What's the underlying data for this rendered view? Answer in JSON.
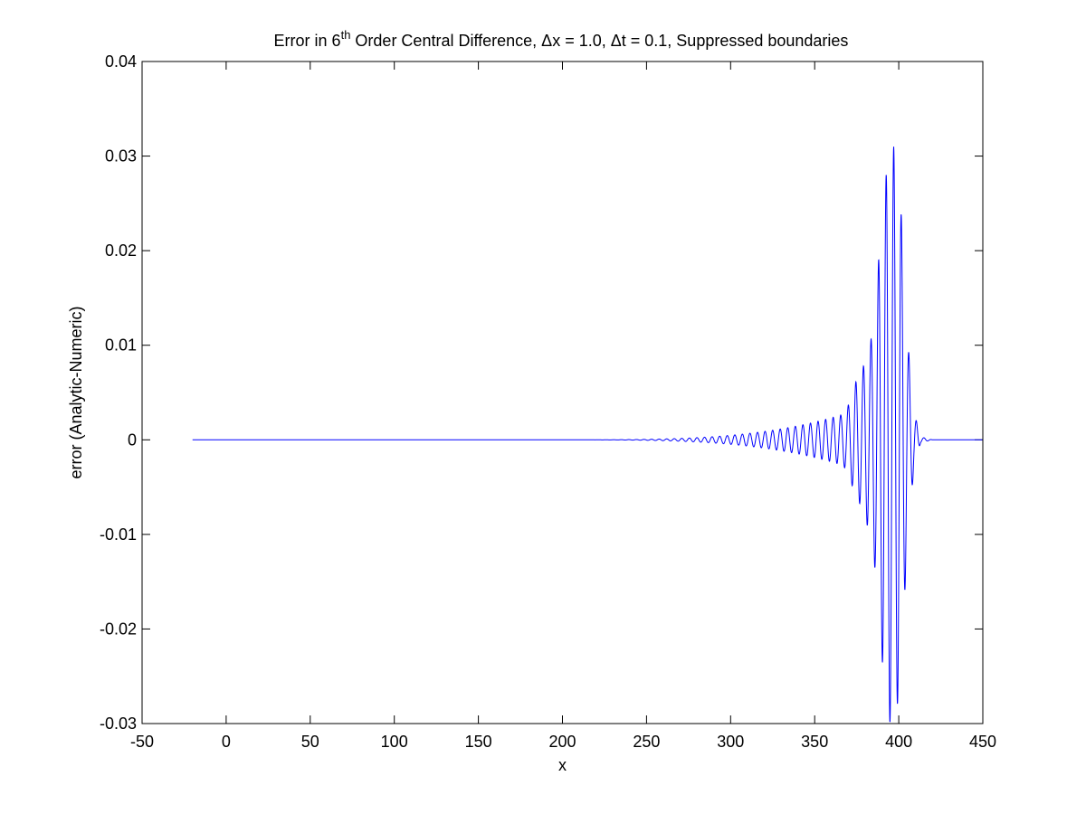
{
  "chart_data": {
    "type": "line",
    "title_parts": {
      "prefix": "Error in 6",
      "superscript": "th",
      "suffix": " Order Central Difference, Δx = 1.0, Δt = 0.1, Suppressed boundaries"
    },
    "xlabel": "x",
    "ylabel": "error (Analytic-Numeric)",
    "xlim": [
      -50,
      450
    ],
    "ylim": [
      -0.03,
      0.04
    ],
    "xticks": [
      -50,
      0,
      50,
      100,
      150,
      200,
      250,
      300,
      350,
      400,
      450
    ],
    "xtick_labels": [
      "-50",
      "0",
      "50",
      "100",
      "150",
      "200",
      "250",
      "300",
      "350",
      "400",
      "450"
    ],
    "yticks": [
      -0.03,
      -0.02,
      -0.01,
      0,
      0.01,
      0.02,
      0.03,
      0.04
    ],
    "ytick_labels": [
      "-0.03",
      "-0.02",
      "-0.01",
      "0",
      "0.01",
      "0.02",
      "0.03",
      "0.04"
    ],
    "grid": false,
    "line_color": "#0000ff",
    "series": [
      {
        "x_range": [
          -20,
          450
        ],
        "zero_before": 195,
        "zero_after": 420,
        "oscillation_period": 4.5,
        "peaks": [
          {
            "x": 397,
            "y": 0.031
          },
          {
            "x": 393,
            "y": -0.029
          },
          {
            "x": 388,
            "y": 0.019
          },
          {
            "x": 401,
            "y": -0.0255
          },
          {
            "x": 386,
            "y": -0.0138
          },
          {
            "x": 405,
            "y": 0.0112
          },
          {
            "x": 383,
            "y": 0.01
          },
          {
            "x": 379,
            "y": -0.0078
          },
          {
            "x": 377,
            "y": 0.0068
          },
          {
            "x": 374,
            "y": -0.006
          },
          {
            "x": 371,
            "y": 0.004
          },
          {
            "x": 367,
            "y": 0.0027
          },
          {
            "x": 409,
            "y": -0.003
          },
          {
            "x": 413,
            "y": 0.0003
          }
        ]
      }
    ]
  }
}
